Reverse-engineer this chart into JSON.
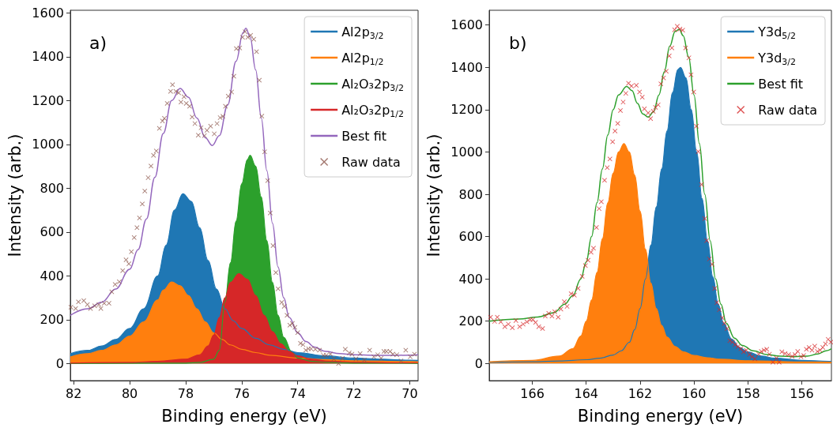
{
  "chart_data": [
    {
      "type": "line",
      "xlabel": "Binding energy (eV)",
      "ylabel": "Intensity (arb.)",
      "annotations": [
        "a)"
      ],
      "xlim": [
        82.12,
        69.7
      ],
      "xticks": [
        82,
        80,
        78,
        76,
        74,
        72,
        70
      ],
      "ylim": [
        -78,
        1612
      ],
      "yticks": [
        0,
        200,
        400,
        600,
        800,
        1000,
        1200,
        1400,
        1600
      ],
      "grid": false,
      "legend": "top right",
      "series": [
        {
          "name": "Al2p$_{3/2}$",
          "color": "#1f77b4",
          "type": "area",
          "x": [
            82.12,
            81.5,
            81,
            80.5,
            80,
            79.5,
            79,
            78.7,
            78.4,
            78.1,
            77.8,
            77.5,
            77.2,
            76.9,
            76.6,
            76.3,
            76,
            75.5,
            75,
            74.5,
            74,
            73,
            72,
            71,
            70,
            69.7
          ],
          "values": [
            45,
            60,
            80,
            110,
            160,
            250,
            400,
            540,
            700,
            775,
            740,
            620,
            470,
            340,
            250,
            195,
            160,
            115,
            85,
            65,
            50,
            35,
            25,
            20,
            15,
            14
          ]
        },
        {
          "name": "Al2p$_{1/2}$",
          "color": "#ff7f0e",
          "type": "area",
          "x": [
            82.12,
            81.5,
            81,
            80.5,
            80,
            79.5,
            79,
            78.8,
            78.5,
            78.2,
            77.9,
            77.6,
            77.3,
            77,
            76.7,
            76.4,
            76,
            75.5,
            75,
            74,
            73,
            72,
            70,
            69.7
          ],
          "values": [
            30,
            45,
            60,
            85,
            125,
            190,
            290,
            335,
            372,
            355,
            310,
            250,
            190,
            140,
            110,
            85,
            65,
            50,
            38,
            25,
            18,
            13,
            9,
            8
          ]
        },
        {
          "name": "Al₂O₃2p$_{3/2}$",
          "color": "#2ca02c",
          "type": "area",
          "x": [
            82.12,
            78,
            77.5,
            77,
            76.8,
            76.6,
            76.4,
            76.2,
            76,
            75.8,
            75.7,
            75.5,
            75.3,
            75.1,
            74.9,
            74.7,
            74.5,
            74.2,
            74,
            73.5,
            73,
            72,
            69.7
          ],
          "values": [
            0,
            2,
            5,
            20,
            60,
            280,
            460,
            650,
            820,
            930,
            950,
            900,
            760,
            560,
            370,
            220,
            120,
            50,
            25,
            10,
            5,
            2,
            1
          ]
        },
        {
          "name": "Al₂O₃2p$_{1/2}$",
          "color": "#d62728",
          "type": "area",
          "x": [
            82.12,
            80,
            79,
            78,
            77.5,
            77.2,
            77,
            76.8,
            76.6,
            76.4,
            76.1,
            75.8,
            75.5,
            75.2,
            74.9,
            74.6,
            74.3,
            74,
            73.5,
            73,
            72,
            70,
            69.7
          ],
          "values": [
            2,
            5,
            10,
            20,
            40,
            80,
            130,
            210,
            300,
            370,
            410,
            385,
            310,
            220,
            145,
            90,
            55,
            35,
            20,
            12,
            6,
            3,
            3
          ]
        },
        {
          "name": "Best fit",
          "color": "#9467bd",
          "type": "line",
          "x": [
            82.12,
            81.5,
            81,
            80.5,
            80,
            79.7,
            79.4,
            79.1,
            78.8,
            78.5,
            78.2,
            77.9,
            77.6,
            77.3,
            77.05,
            76.8,
            76.5,
            76.2,
            75.95,
            75.85,
            75.7,
            75.5,
            75.3,
            75.1,
            74.9,
            74.7,
            74.5,
            74.3,
            74,
            73.7,
            73.4,
            73,
            72.5,
            72,
            71,
            70,
            69.7
          ],
          "values": [
            220,
            250,
            280,
            340,
            430,
            520,
            660,
            850,
            1050,
            1200,
            1255,
            1215,
            1120,
            1030,
            995,
            1040,
            1180,
            1380,
            1510,
            1530,
            1490,
            1340,
            1120,
            880,
            640,
            440,
            300,
            210,
            140,
            100,
            75,
            55,
            45,
            40,
            37,
            38,
            40
          ]
        },
        {
          "name": "Raw data",
          "color": "#8c564b",
          "type": "scatter",
          "marker": "cross",
          "x": [
            82.1,
            81.93,
            81.83,
            81.64,
            81.51,
            81.4,
            81.25,
            81.1,
            81.03,
            80.91,
            80.74,
            80.64,
            80.52,
            80.37,
            80.25,
            80.13,
            80.03,
            79.94,
            79.84,
            79.74,
            79.65,
            79.55,
            79.46,
            79.34,
            79.24,
            79.15,
            79.05,
            78.94,
            78.83,
            78.76,
            78.66,
            78.54,
            78.47,
            78.35,
            78.25,
            78.17,
            78.06,
            77.98,
            77.86,
            77.77,
            77.67,
            77.55,
            77.45,
            77.33,
            77.24,
            77.11,
            76.98,
            76.88,
            76.77,
            76.67,
            76.58,
            76.48,
            76.36,
            76.28,
            76.19,
            76.07,
            75.97,
            75.88,
            75.78,
            75.68,
            75.57,
            75.47,
            75.37,
            75.28,
            75.18,
            75.07,
            74.98,
            74.88,
            74.78,
            74.7,
            74.57,
            74.48,
            74.38,
            74.28,
            74.19,
            74.1,
            74,
            73.9,
            73.81,
            73.71,
            73.61,
            73.52,
            73.37,
            73.22,
            73.08,
            72.98,
            72.83,
            72.71,
            72.54,
            72.4,
            72.3,
            72.16,
            72.06,
            71.92,
            71.77,
            71.62,
            71.43,
            71.28,
            71.14,
            71.02,
            70.92,
            70.83,
            70.7,
            70.6,
            70.46,
            70.31,
            70.14,
            69.98,
            69.83
          ],
          "values": [
            257,
            251,
            281,
            287,
            269,
            251,
            263,
            269,
            251,
            275,
            275,
            327,
            361,
            373,
            424,
            473,
            455,
            510,
            575,
            620,
            664,
            728,
            787,
            848,
            901,
            950,
            970,
            1073,
            1107,
            1119,
            1187,
            1242,
            1272,
            1242,
            1235,
            1193,
            1217,
            1187,
            1174,
            1125,
            1095,
            1042,
            1076,
            1040,
            1064,
            1083,
            1048,
            1095,
            1122,
            1128,
            1174,
            1220,
            1239,
            1311,
            1437,
            1440,
            1489,
            1514,
            1489,
            1498,
            1480,
            1423,
            1293,
            1129,
            966,
            835,
            687,
            538,
            415,
            341,
            279,
            261,
            220,
            175,
            183,
            165,
            141,
            92,
            86,
            61,
            67,
            67,
            65,
            61,
            37,
            37,
            43,
            21,
            0,
            24,
            65,
            49,
            43,
            21,
            45,
            16,
            61,
            31,
            40,
            24,
            55,
            55,
            55,
            43,
            40,
            12,
            61,
            31,
            43
          ]
        }
      ]
    },
    {
      "type": "line",
      "xlabel": "Binding energy (eV)",
      "ylabel": "Intensity (arb.)",
      "annotations": [
        "b)"
      ],
      "xlim": [
        167.6,
        154.9
      ],
      "xticks": [
        166,
        164,
        162,
        160,
        158,
        156
      ],
      "ylim": [
        -81,
        1670
      ],
      "yticks": [
        0,
        200,
        400,
        600,
        800,
        1000,
        1200,
        1400,
        1600
      ],
      "grid": false,
      "legend": "top right",
      "series": [
        {
          "name": "Y3d$_{5/2}$",
          "color": "#1f77b4",
          "type": "area",
          "x": [
            167.6,
            166,
            165,
            164,
            163.5,
            163,
            162.7,
            162.4,
            162.2,
            162,
            161.8,
            161.6,
            161.4,
            161.2,
            161,
            160.8,
            160.6,
            160.5,
            160.3,
            160.1,
            159.9,
            159.7,
            159.5,
            159.3,
            159.1,
            158.9,
            158.6,
            158.3,
            158,
            157.5,
            157,
            156,
            155,
            154.9
          ],
          "values": [
            5,
            8,
            12,
            18,
            25,
            40,
            60,
            100,
            160,
            260,
            400,
            560,
            740,
            920,
            1100,
            1280,
            1390,
            1400,
            1350,
            1200,
            1000,
            780,
            580,
            410,
            280,
            190,
            115,
            75,
            55,
            35,
            25,
            15,
            10,
            10
          ]
        },
        {
          "name": "Y3d$_{3/2}$",
          "color": "#ff7f0e",
          "type": "area",
          "x": [
            167.6,
            166,
            165,
            164.5,
            164.2,
            164,
            163.8,
            163.6,
            163.4,
            163.2,
            163,
            162.8,
            162.6,
            162.4,
            162.2,
            162,
            161.8,
            161.6,
            161.4,
            161.2,
            161,
            160.7,
            160.4,
            160,
            159.5,
            159,
            158,
            157,
            156,
            154.9
          ],
          "values": [
            8,
            15,
            35,
            70,
            130,
            200,
            300,
            430,
            590,
            760,
            900,
            1000,
            1040,
            1000,
            890,
            720,
            540,
            380,
            260,
            180,
            125,
            80,
            55,
            38,
            27,
            20,
            13,
            10,
            7,
            6
          ]
        },
        {
          "name": "Best fit",
          "color": "#2ca02c",
          "type": "line",
          "x": [
            167.6,
            166.5,
            165.8,
            165.2,
            164.8,
            164.5,
            164.2,
            164,
            163.8,
            163.6,
            163.4,
            163.2,
            163,
            162.8,
            162.5,
            162.3,
            162.1,
            161.9,
            161.7,
            161.5,
            161.3,
            161.1,
            160.9,
            160.7,
            160.55,
            160.4,
            160.2,
            160,
            159.8,
            159.6,
            159.4,
            159.2,
            159,
            158.8,
            158.5,
            158.2,
            157.8,
            157.3,
            156.8,
            156.3,
            155.8,
            155.4,
            155.1,
            154.9
          ],
          "values": [
            200,
            210,
            220,
            240,
            280,
            320,
            400,
            480,
            600,
            760,
            920,
            1080,
            1200,
            1270,
            1310,
            1290,
            1230,
            1180,
            1165,
            1190,
            1270,
            1380,
            1500,
            1570,
            1580,
            1550,
            1450,
            1270,
            1040,
            800,
            580,
            400,
            280,
            190,
            120,
            85,
            60,
            42,
            35,
            32,
            35,
            45,
            60,
            70
          ]
        },
        {
          "name": "Raw data",
          "color": "#d62728",
          "type": "scatter",
          "marker": "cross",
          "x": [
            167.55,
            167.4,
            167.3,
            167.17,
            167.02,
            166.89,
            166.74,
            166.61,
            166.47,
            166.34,
            166.2,
            166.08,
            165.98,
            165.88,
            165.76,
            165.62,
            165.52,
            165.39,
            165.27,
            165.17,
            165.04,
            164.94,
            164.81,
            164.71,
            164.56,
            164.44,
            164.3,
            164.15,
            164.03,
            163.93,
            163.82,
            163.73,
            163.62,
            163.52,
            163.44,
            163.32,
            163.22,
            163.12,
            163.02,
            162.93,
            162.83,
            162.73,
            162.63,
            162.53,
            162.43,
            162.32,
            162.14,
            162.02,
            161.92,
            161.84,
            161.7,
            161.61,
            161.51,
            161.43,
            161.33,
            161.23,
            161.13,
            161.03,
            160.92,
            160.82,
            160.72,
            160.62,
            160.52,
            160.42,
            160.31,
            160.19,
            160.11,
            160.01,
            159.91,
            159.84,
            159.72,
            159.6,
            159.53,
            159.43,
            159.33,
            159.23,
            159.15,
            159.06,
            158.95,
            158.87,
            158.77,
            158.67,
            158.57,
            158.47,
            158.37,
            158.26,
            158.16,
            158.06,
            157.94,
            157.84,
            157.74,
            157.6,
            157.5,
            157.4,
            157.3,
            157.2,
            157.07,
            156.94,
            156.84,
            156.74,
            156.62,
            156.49,
            156.36,
            156.25,
            156.15,
            156.03,
            155.93,
            155.83,
            155.73,
            155.62,
            155.52,
            155.42,
            155.32,
            155.22,
            155.12,
            155.02,
            154.92
          ],
          "values": [
            219,
            199,
            219,
            197,
            174,
            186,
            169,
            203,
            174,
            186,
            197,
            207,
            207,
            194,
            174,
            165,
            224,
            237,
            224,
            245,
            219,
            257,
            292,
            270,
            330,
            323,
            355,
            412,
            463,
            488,
            526,
            545,
            643,
            732,
            765,
            866,
            926,
            967,
            1048,
            1099,
            1135,
            1196,
            1236,
            1277,
            1325,
            1312,
            1315,
            1284,
            1259,
            1204,
            1185,
            1158,
            1192,
            1211,
            1223,
            1322,
            1350,
            1382,
            1454,
            1492,
            1578,
            1594,
            1581,
            1576,
            1492,
            1445,
            1365,
            1284,
            1122,
            1002,
            846,
            685,
            581,
            494,
            469,
            355,
            288,
            254,
            216,
            190,
            165,
            108,
            101,
            89,
            80,
            70,
            55,
            63,
            42,
            32,
            22,
            44,
            57,
            63,
            67,
            44,
            6,
            25,
            6,
            55,
            47,
            42,
            34,
            42,
            57,
            32,
            38,
            67,
            76,
            63,
            82,
            57,
            63,
            76,
            93,
            114,
            101
          ]
        }
      ]
    }
  ]
}
